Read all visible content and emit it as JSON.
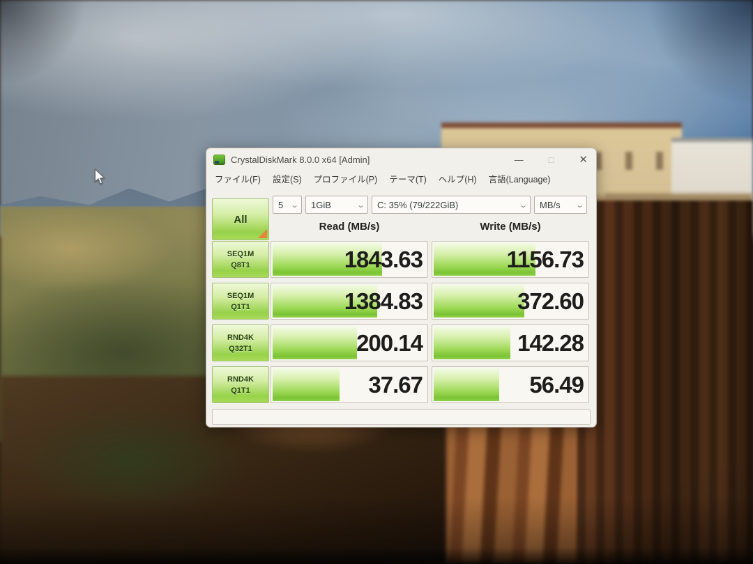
{
  "window": {
    "title": "CrystalDiskMark 8.0.0 x64 [Admin]",
    "window_controls": {
      "minimize": "—",
      "maximize": "□",
      "close": "✕"
    },
    "menu_items": [
      {
        "label": "ファイル(F)"
      },
      {
        "label": "設定(S)"
      },
      {
        "label": "プロファイル(P)"
      },
      {
        "label": "テーマ(T)"
      },
      {
        "label": "ヘルプ(H)"
      },
      {
        "label": "言語(Language)"
      }
    ],
    "toolbar": {
      "all_button_label": "All",
      "test_count_value": "5",
      "test_size_value": "1GiB",
      "target_value": "C: 35% (79/222GiB)",
      "unit_value": "MB/s",
      "chevron": "⌄"
    },
    "column_headers": {
      "read": "Read (MB/s)",
      "write": "Write (MB/s)"
    },
    "results": [
      {
        "test": "SEQ1M",
        "queue_thread": "Q8T1",
        "read": "1843.63",
        "write": "1156.73",
        "read_bar_pct": 70,
        "write_bar_pct": 65
      },
      {
        "test": "SEQ1M",
        "queue_thread": "Q1T1",
        "read": "1384.83",
        "write": "372.60",
        "read_bar_pct": 67,
        "write_bar_pct": 58
      },
      {
        "test": "RND4K",
        "queue_thread": "Q32T1",
        "read": "200.14",
        "write": "142.28",
        "read_bar_pct": 54,
        "write_bar_pct": 49
      },
      {
        "test": "RND4K",
        "queue_thread": "Q1T1",
        "read": "37.67",
        "write": "56.49",
        "read_bar_pct": 43,
        "write_bar_pct": 42
      }
    ],
    "status_bar_text": ""
  },
  "colors": {
    "accent_green": "#8fce44",
    "bar_gradient_bottom": "#7cc335",
    "button_gradient_top": "#eef8d8",
    "all_corner_orange": "#e8833a",
    "window_background": "#f2f0eb"
  }
}
